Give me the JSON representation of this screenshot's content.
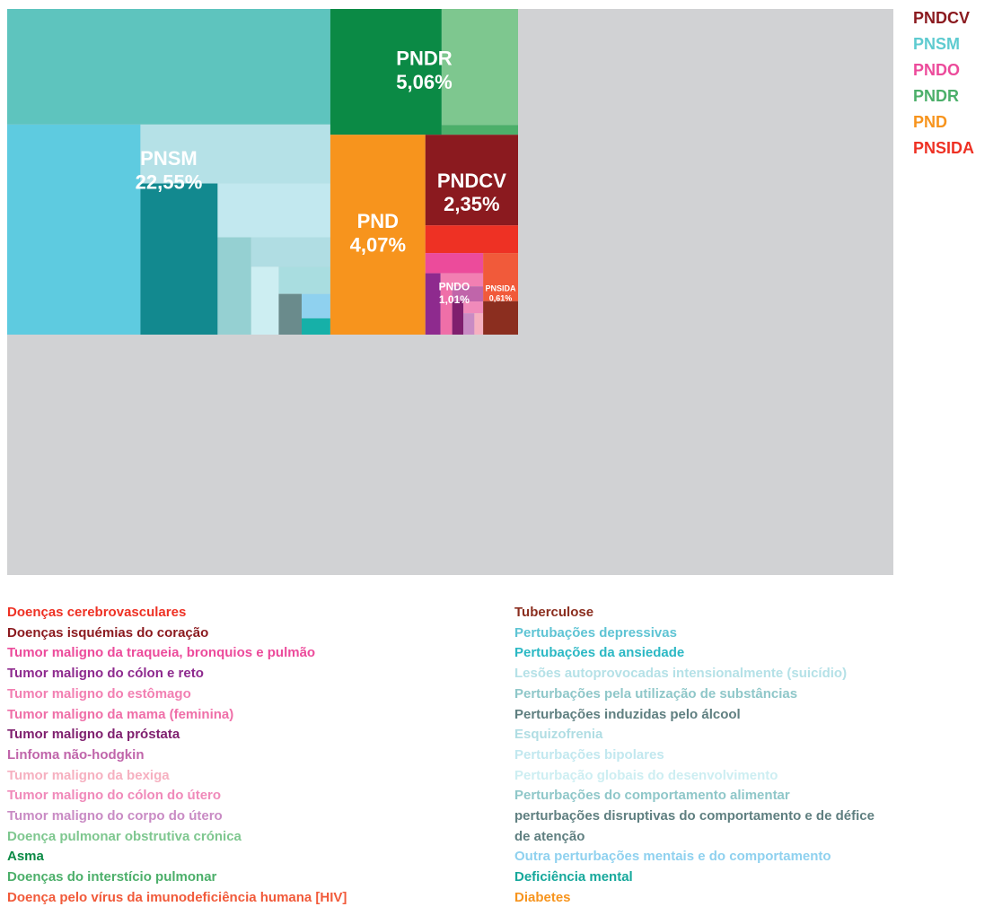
{
  "chart_data": {
    "type": "treemap",
    "groups": [
      {
        "name": "PNSM",
        "value": 22.55,
        "value_label": "22,55%",
        "items": [
          {
            "value": 8.0,
            "color": "#5ec4be"
          },
          {
            "value": 6.0,
            "color": "#5ecbe0"
          },
          {
            "value": 2.4,
            "color": "#b5e1e7"
          },
          {
            "value": 2.5,
            "color": "#12898f"
          },
          {
            "value": 1.3,
            "color": "#c2e8ef"
          },
          {
            "value": 0.7,
            "color": "#95d0d2"
          },
          {
            "value": 0.5,
            "color": "#b0dde3"
          },
          {
            "value": 0.4,
            "color": "#cdeef2"
          },
          {
            "value": 0.3,
            "color": "#a9dde0"
          },
          {
            "value": 0.2,
            "color": "#6a8b8c"
          },
          {
            "value": 0.15,
            "color": "#8fd1ef"
          },
          {
            "value": 0.1,
            "color": "#16b0a8"
          }
        ]
      },
      {
        "name": "PNDR",
        "value": 5.06,
        "value_label": "5,06%",
        "items": [
          {
            "value": 3.0,
            "color": "#0b8a45"
          },
          {
            "value": 1.9,
            "color": "#7ec78f"
          },
          {
            "value": 0.16,
            "color": "#4caf6a"
          }
        ]
      },
      {
        "name": "PND",
        "value": 4.07,
        "value_label": "4,07%",
        "items": [
          {
            "value": 4.07,
            "color": "#f7941d"
          }
        ]
      },
      {
        "name": "PNDCV",
        "value": 2.35,
        "value_label": "2,35%",
        "items": [
          {
            "value": 1.8,
            "color": "#8b1a1f"
          },
          {
            "value": 0.55,
            "color": "#ee3124"
          }
        ]
      },
      {
        "name": "PNDO",
        "value": 1.01,
        "value_label": "1,01%",
        "items": [
          {
            "value": 0.25,
            "color": "#ec4b9b"
          },
          {
            "value": 0.2,
            "color": "#8e2a8e"
          },
          {
            "value": 0.12,
            "color": "#f27fb2"
          },
          {
            "value": 0.12,
            "color": "#ef6fa8"
          },
          {
            "value": 0.1,
            "color": "#c065aa"
          },
          {
            "value": 0.08,
            "color": "#7f1f6e"
          },
          {
            "value": 0.05,
            "color": "#f08aba"
          },
          {
            "value": 0.05,
            "color": "#c98bc4"
          },
          {
            "value": 0.04,
            "color": "#f6b0c0"
          }
        ]
      },
      {
        "name": "PNSIDA",
        "value": 0.61,
        "value_label": "0,61%",
        "items": [
          {
            "value": 0.36,
            "color": "#f15a3a"
          },
          {
            "value": 0.25,
            "color": "#8b2e1f"
          }
        ]
      }
    ],
    "group_legend": [
      {
        "name": "PNDCV",
        "color": "#8b1a1f"
      },
      {
        "name": "PNSM",
        "color": "#5ecbd0"
      },
      {
        "name": "PNDO",
        "color": "#ec4b9b"
      },
      {
        "name": "PNDR",
        "color": "#4caf6a"
      },
      {
        "name": "PND",
        "color": "#f7941d"
      },
      {
        "name": "PNSIDA",
        "color": "#ee3124"
      }
    ],
    "legend": [
      {
        "text": "Doenças cerebrovasculares",
        "color": "#ee3124"
      },
      {
        "text": "Doenças isquémias do coração",
        "color": "#8b1a1f"
      },
      {
        "text": "Tumor maligno da traqueia, bronquios e pulmão",
        "color": "#ec4b9b"
      },
      {
        "text": "Tumor maligno do cólon e reto",
        "color": "#8e2a8e"
      },
      {
        "text": "Tumor maligno do estômago",
        "color": "#f27fb2"
      },
      {
        "text": "Tumor maligno da mama (feminina)",
        "color": "#ef6fa8"
      },
      {
        "text": "Tumor maligno da próstata",
        "color": "#7f1f6e"
      },
      {
        "text": "Linfoma não-hodgkin",
        "color": "#c065aa"
      },
      {
        "text": "Tumor maligno da bexiga",
        "color": "#f6b0c0"
      },
      {
        "text": "Tumor maligno do cólon do útero",
        "color": "#f08aba"
      },
      {
        "text": "Tumor maligno do corpo do útero",
        "color": "#c98bc4"
      },
      {
        "text": "Doença pulmonar obstrutiva crónica",
        "color": "#7ec78f"
      },
      {
        "text": "Asma",
        "color": "#0b8a45"
      },
      {
        "text": "Doenças do interstício pulmonar",
        "color": "#4caf6a"
      },
      {
        "text": "Doença pelo vírus da imunodeficiência humana [HIV]",
        "color": "#f15a3a"
      },
      {
        "text": "Tuberculose",
        "color": "#8b2e1f"
      },
      {
        "text": "Pertubações depressivas",
        "color": "#5ec4d4"
      },
      {
        "text": "Pertubações da ansiedade",
        "color": "#2bb8c4"
      },
      {
        "text": "Lesões autoprovocadas intensionalmente (suicídio)",
        "color": "#b5e1e7"
      },
      {
        "text": "Perturbações pela utilização de substâncias",
        "color": "#8fc7c9"
      },
      {
        "text": "Perturbações induzidas pelo álcool",
        "color": "#5f7f80"
      },
      {
        "text": "Esquizofrenia",
        "color": "#b0dde3"
      },
      {
        "text": "Perturbações bipolares",
        "color": "#c2e8ef"
      },
      {
        "text": "Perturbação globais do desenvolvimento",
        "color": "#cdeef2"
      },
      {
        "text": "Perturbações do comportamento alimentar",
        "color": "#8fc7c9"
      },
      {
        "text": "perturbações disruptivas do comportamento e de défice de atenção",
        "color": "#5f7f80"
      },
      {
        "text": "Outra perturbações mentais e do comportamento",
        "color": "#8fd1ef"
      },
      {
        "text": "Deficiência mental",
        "color": "#16a89b"
      },
      {
        "text": "Diabetes",
        "color": "#f7941d"
      }
    ]
  }
}
